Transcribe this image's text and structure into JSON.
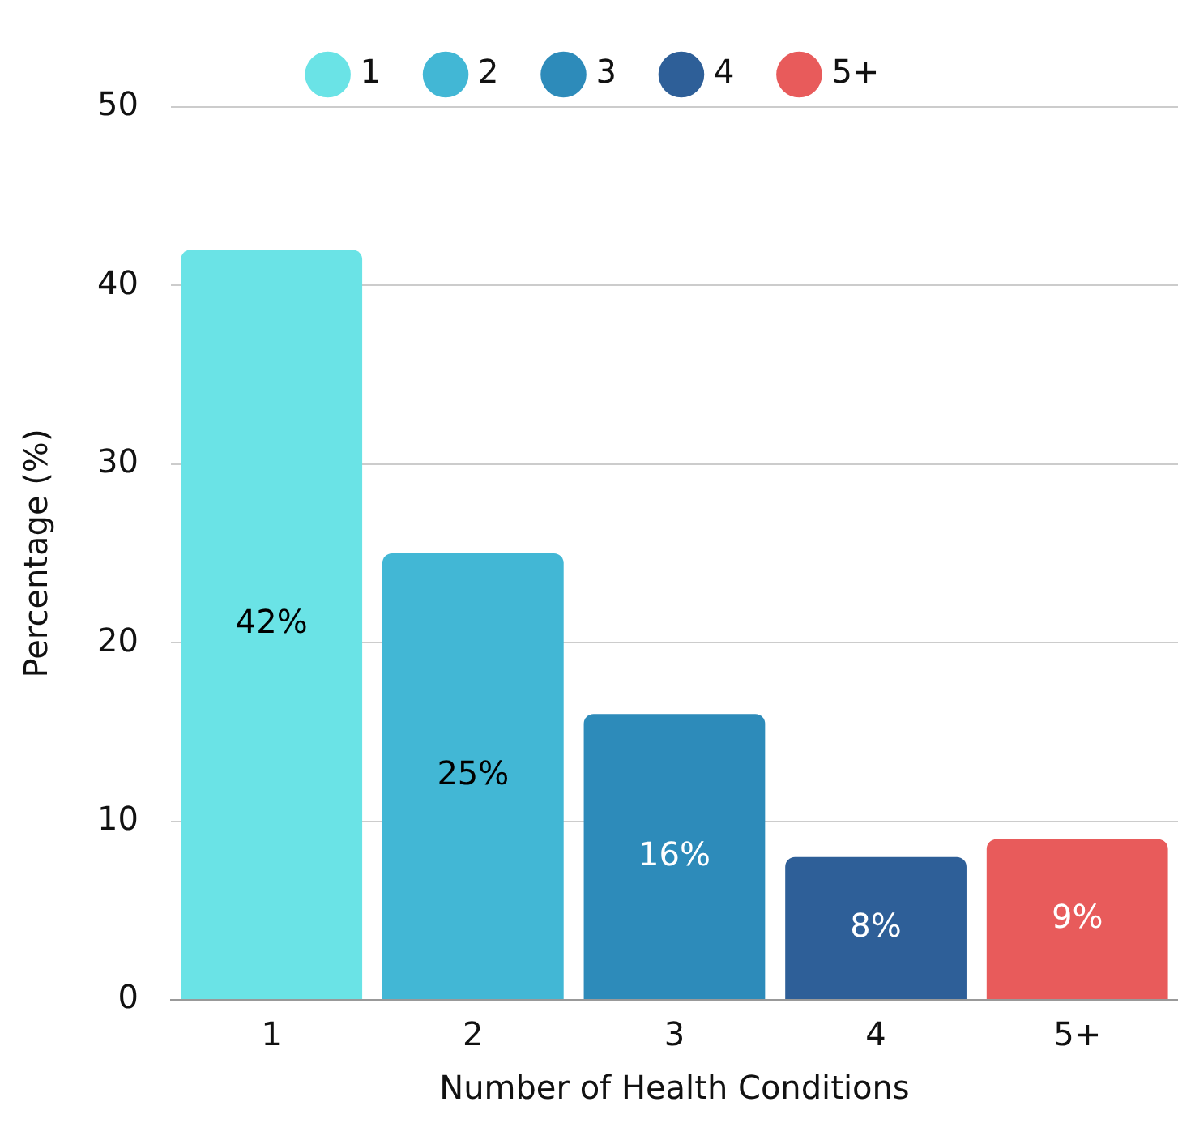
{
  "chart_data": {
    "type": "bar",
    "xlabel": "Number of Health Conditions",
    "ylabel": "Percentage (%)",
    "categories": [
      "1",
      "2",
      "3",
      "4",
      "5+"
    ],
    "series": [
      {
        "name": "1",
        "color": "#6ae3e6",
        "values": [
          42,
          null,
          null,
          null,
          null
        ],
        "value_labels": [
          "42%",
          null,
          null,
          null,
          null
        ]
      },
      {
        "name": "2",
        "color": "#42b7d5",
        "values": [
          null,
          25,
          null,
          null,
          null
        ],
        "value_labels": [
          null,
          "25%",
          null,
          null,
          null
        ]
      },
      {
        "name": "3",
        "color": "#2d8bba",
        "values": [
          null,
          null,
          16,
          null,
          null
        ],
        "value_labels": [
          null,
          null,
          "16%",
          null,
          null
        ]
      },
      {
        "name": "4",
        "color": "#2e5f98",
        "values": [
          null,
          null,
          null,
          8,
          null
        ],
        "value_labels": [
          null,
          null,
          null,
          "8%",
          null
        ]
      },
      {
        "name": "5+",
        "color": "#e85b5b",
        "values": [
          null,
          null,
          null,
          null,
          9
        ],
        "value_labels": [
          null,
          null,
          null,
          null,
          "9%"
        ]
      }
    ],
    "ylim": [
      0,
      50
    ],
    "yticks": [
      0,
      10,
      20,
      30,
      40,
      50
    ],
    "grid": "y",
    "legend": "top"
  }
}
